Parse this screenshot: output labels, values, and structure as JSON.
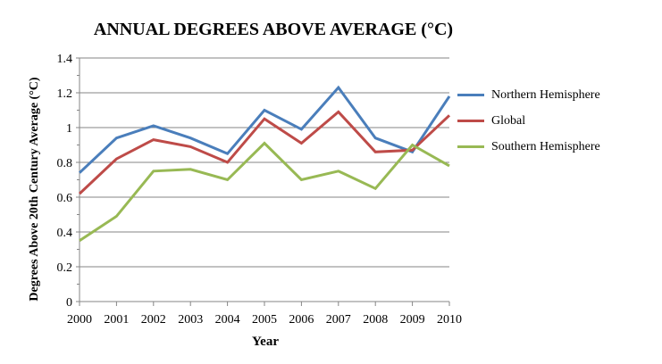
{
  "chart_data": {
    "type": "line",
    "title": "ANNUAL DEGREES ABOVE AVERAGE (°C)",
    "xlabel": "Year",
    "ylabel": "Degrees Above 20th Century Average (°C)",
    "x": [
      "2000",
      "2001",
      "2002",
      "2003",
      "2004",
      "2005",
      "2006",
      "2007",
      "2008",
      "2009",
      "2010"
    ],
    "ylim": [
      0,
      1.4
    ],
    "yticks": [
      "0",
      "0.2",
      "0.4",
      "0.6",
      "0.8",
      "1",
      "1.2",
      "1.4"
    ],
    "grid": true,
    "legend": "right",
    "series": [
      {
        "name": "Northern Hemisphere",
        "color": "#4a7ebb",
        "values": [
          0.74,
          0.94,
          1.01,
          0.94,
          0.85,
          1.1,
          0.99,
          1.23,
          0.94,
          0.86,
          1.18
        ]
      },
      {
        "name": "Global",
        "color": "#be4b48",
        "values": [
          0.62,
          0.82,
          0.93,
          0.89,
          0.8,
          1.05,
          0.91,
          1.09,
          0.86,
          0.87,
          1.07
        ]
      },
      {
        "name": "Southern Hemisphere",
        "color": "#98b954",
        "values": [
          0.35,
          0.49,
          0.75,
          0.76,
          0.7,
          0.91,
          0.7,
          0.75,
          0.65,
          0.9,
          0.78
        ]
      }
    ]
  }
}
